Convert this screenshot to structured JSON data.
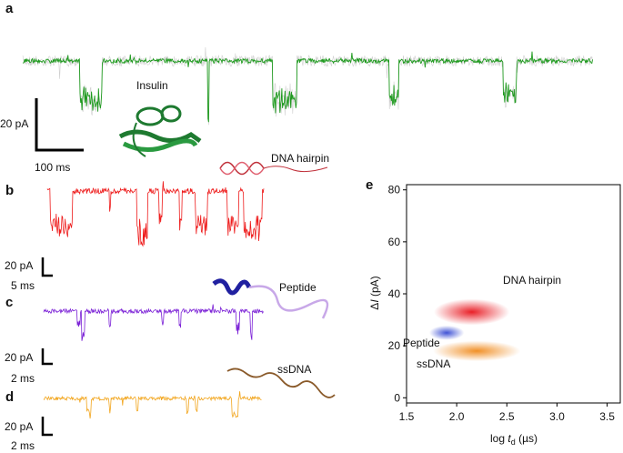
{
  "panels": [
    {
      "label": "a",
      "annotation": "Insulin",
      "scale_y": "20 pA",
      "scale_x": "100 ms"
    },
    {
      "label": "b",
      "annotation": "DNA hairpin",
      "scale_y": "20 pA",
      "scale_x": "5 ms"
    },
    {
      "label": "c",
      "annotation": "Peptide",
      "scale_y": "20 pA",
      "scale_x": "2 ms"
    },
    {
      "label": "d",
      "annotation": "ssDNA",
      "scale_y": "20 pA",
      "scale_x": "2 ms"
    }
  ],
  "chart_data": {
    "type": "density",
    "panel_label": "e",
    "xlabel": [
      "log ",
      "t",
      "d",
      " (µs)"
    ],
    "ylabel": [
      "Δ",
      "I",
      " (pA)"
    ],
    "xlim": [
      1.5,
      3.64
    ],
    "ylim": [
      -2,
      82
    ],
    "xticks": [
      {
        "value": 1.5,
        "label": "1.5"
      },
      {
        "value": 2,
        "label": "2.0"
      },
      {
        "value": 2.5,
        "label": "2.5"
      },
      {
        "value": 3,
        "label": "3.0"
      },
      {
        "value": 3.5,
        "label": "3.5"
      }
    ],
    "yticks": [
      0,
      20,
      40,
      60,
      80
    ],
    "series": [
      {
        "name": "DNA hairpin",
        "color": "#e8141c",
        "x": 2.15,
        "y": 33
      },
      {
        "name": "Peptide",
        "color": "#2a3fd0",
        "x": 1.9,
        "y": 25
      },
      {
        "name": "ssDNA",
        "color": "#f08a1c",
        "x": 2.2,
        "y": 18
      }
    ]
  }
}
